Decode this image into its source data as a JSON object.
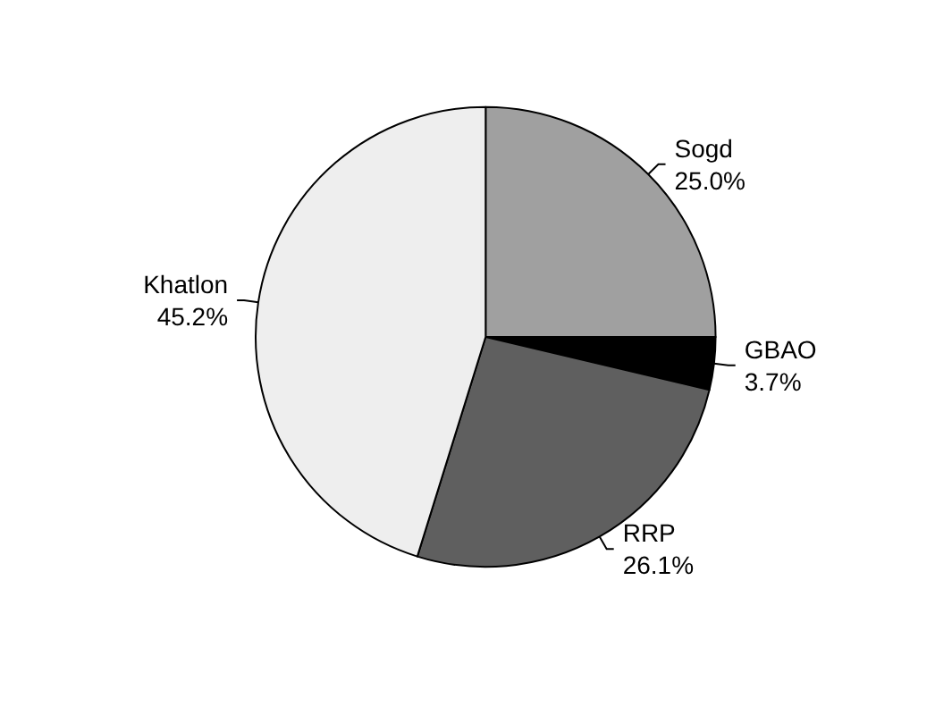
{
  "chart_data": {
    "type": "pie",
    "categories": [
      "Sogd",
      "GBAO",
      "RRP",
      "Khatlon"
    ],
    "values": [
      25.0,
      3.7,
      26.1,
      45.2
    ],
    "value_labels": [
      "25.0%",
      "3.7%",
      "26.1%",
      "45.2%"
    ],
    "colors": [
      "#a0a0a0",
      "#000000",
      "#5f5f5f",
      "#eeeeee"
    ],
    "legend": false
  }
}
